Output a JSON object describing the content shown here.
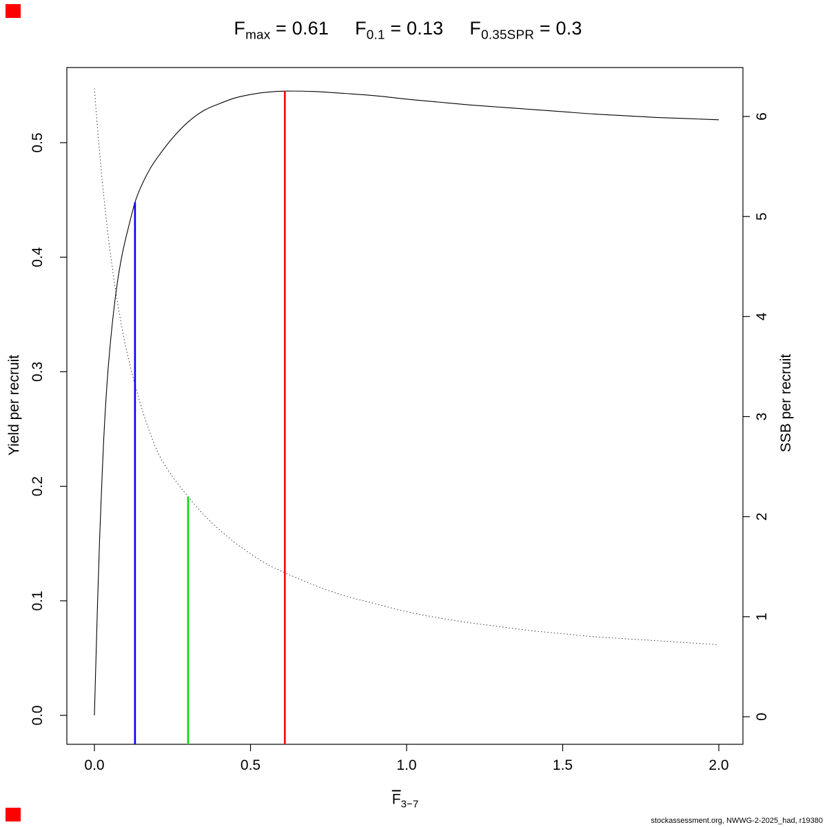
{
  "title_terms": [
    {
      "base": "F",
      "sub": "max",
      "eq": " = 0.61"
    },
    {
      "base": "F",
      "sub": "0.1",
      "eq": " = 0.13"
    },
    {
      "base": "F",
      "sub": "0.35SPR",
      "eq": " = 0.3"
    }
  ],
  "xlabel": {
    "base": "F",
    "sub": "3−7"
  },
  "ylabel_left": "Yield per recruit",
  "ylabel_right": "SSB per recruit",
  "footer": "stockassessment.org, NWWG-2-2025_had, r19380",
  "corner_marker_color": "#ff0000",
  "chart_data": {
    "type": "line",
    "title": "Fmax = 0.61  F0.1 = 0.13  F0.35SPR = 0.3",
    "xlabel": "F(bar) 3−7",
    "ylabel_left": "Yield per recruit",
    "ylabel_right": "SSB per recruit",
    "reference_points": {
      "F_max": 0.61,
      "F_0.1": 0.13,
      "F_0.35SPR": 0.3
    },
    "x_axis": {
      "range": [
        0,
        2.07
      ],
      "ticks": [
        0,
        0.5,
        1.0,
        1.5,
        2.0
      ],
      "tick_labels": [
        "0.0",
        "0.5",
        "1.0",
        "1.5",
        "2.0"
      ]
    },
    "y_left_axis": {
      "range": [
        0,
        0.56
      ],
      "ticks": [
        0,
        0.1,
        0.2,
        0.3,
        0.4,
        0.5
      ],
      "tick_labels": [
        "0.0",
        "0.1",
        "0.2",
        "0.3",
        "0.4",
        "0.5"
      ]
    },
    "y_right_axis": {
      "range": [
        0,
        6.5
      ],
      "ticks": [
        0,
        1,
        2,
        3,
        4,
        5,
        6
      ],
      "tick_labels": [
        "0",
        "1",
        "2",
        "3",
        "4",
        "5",
        "6"
      ]
    },
    "grid": false,
    "legend": "none",
    "series": [
      {
        "name": "yield-per-recruit",
        "axis": "left",
        "style": "solid",
        "color": "#000000",
        "x": [
          0,
          0.005,
          0.01,
          0.015,
          0.02,
          0.03,
          0.04,
          0.05,
          0.06,
          0.07,
          0.08,
          0.09,
          0.1,
          0.11,
          0.13,
          0.15,
          0.18,
          0.21,
          0.25,
          0.3,
          0.35,
          0.4,
          0.45,
          0.5,
          0.55,
          0.61,
          0.7,
          0.8,
          0.9,
          1.0,
          1.1,
          1.2,
          1.3,
          1.4,
          1.5,
          1.6,
          1.7,
          1.8,
          1.9,
          2.0
        ],
        "y": [
          0,
          0.05,
          0.097,
          0.14,
          0.178,
          0.242,
          0.288,
          0.322,
          0.349,
          0.371,
          0.389,
          0.404,
          0.416,
          0.427,
          0.448,
          0.462,
          0.478,
          0.49,
          0.504,
          0.518,
          0.528,
          0.534,
          0.539,
          0.542,
          0.544,
          0.545,
          0.5447,
          0.543,
          0.541,
          0.538,
          0.5355,
          0.533,
          0.531,
          0.529,
          0.527,
          0.525,
          0.5235,
          0.522,
          0.521,
          0.52
        ]
      },
      {
        "name": "ssb-per-recruit",
        "axis": "right",
        "style": "dotted",
        "color": "#000000",
        "x": [
          0,
          0.01,
          0.02,
          0.03,
          0.04,
          0.05,
          0.06,
          0.07,
          0.08,
          0.09,
          0.1,
          0.12,
          0.13,
          0.15,
          0.18,
          0.21,
          0.25,
          0.3,
          0.35,
          0.4,
          0.45,
          0.5,
          0.55,
          0.61,
          0.7,
          0.8,
          0.9,
          1.0,
          1.1,
          1.2,
          1.3,
          1.4,
          1.5,
          1.6,
          1.7,
          1.8,
          1.9,
          2.0
        ],
        "y": [
          6.28,
          5.88,
          5.52,
          5.2,
          4.92,
          4.66,
          4.43,
          4.22,
          4.03,
          3.86,
          3.7,
          3.44,
          3.32,
          3.1,
          2.82,
          2.6,
          2.4,
          2.2,
          2.02,
          1.87,
          1.74,
          1.63,
          1.53,
          1.44,
          1.32,
          1.21,
          1.13,
          1.05,
          0.99,
          0.94,
          0.9,
          0.86,
          0.83,
          0.8,
          0.78,
          0.76,
          0.74,
          0.72
        ]
      }
    ],
    "vlines": [
      {
        "name": "vline-f01",
        "label": "F0.1",
        "x": 0.13,
        "top_value": 0.448,
        "top_axis": "left",
        "color": "#0000ff"
      },
      {
        "name": "vline-f035spr",
        "label": "F0.35SPR",
        "x": 0.3,
        "top_value": 2.2,
        "top_axis": "right",
        "color": "#00e000"
      },
      {
        "name": "vline-fmax",
        "label": "Fmax",
        "x": 0.61,
        "top_value": 0.545,
        "top_axis": "left",
        "color": "#ff0000"
      }
    ]
  }
}
